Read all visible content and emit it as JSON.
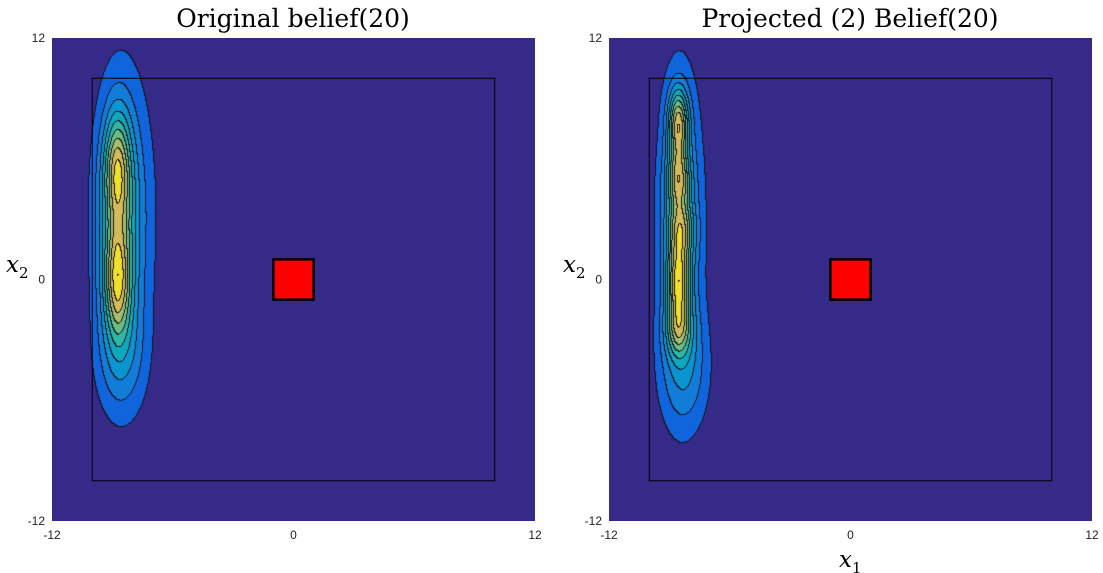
{
  "chart_data": [
    {
      "type": "contour",
      "title": "Original belief(20)",
      "xlabel": "",
      "ylabel": "x2",
      "xlim": [
        -12,
        12
      ],
      "ylim": [
        -12,
        12
      ],
      "x_ticks": [
        "-12",
        "0",
        "12"
      ],
      "y_ticks": [
        "12",
        "0",
        "-12"
      ],
      "background_color": "#352A87",
      "boundary_rect": {
        "x": [
          -10,
          10
        ],
        "y": [
          -10,
          10
        ]
      },
      "obstacle": {
        "x": [
          -1,
          1
        ],
        "y": [
          -1,
          1
        ],
        "color": "#FF0000"
      },
      "belief_blobs": [
        {
          "cx": -8.8,
          "cy": 5.5,
          "sx": 0.45,
          "sy": 1.9,
          "amp": 0.95
        },
        {
          "cx": -8.8,
          "cy": 0.0,
          "sx": 0.45,
          "sy": 1.9,
          "amp": 1.0
        },
        {
          "cx": -8.7,
          "cy": 2.8,
          "sx": 0.8,
          "sy": 4.2,
          "amp": 0.55
        },
        {
          "cx": -8.6,
          "cy": -3.8,
          "sx": 0.9,
          "sy": 2.2,
          "amp": 0.35
        },
        {
          "cx": -8.4,
          "cy": 3.5,
          "sx": 1.2,
          "sy": 5.5,
          "amp": 0.3
        }
      ]
    },
    {
      "type": "contour",
      "title": "Projected (2) Belief(20)",
      "xlabel": "x1",
      "ylabel": "x2",
      "xlim": [
        -12,
        12
      ],
      "ylim": [
        -12,
        12
      ],
      "x_ticks": [
        "-12",
        "0",
        "12"
      ],
      "y_ticks": [
        "12",
        "0",
        "-12"
      ],
      "background_color": "#352A87",
      "boundary_rect": {
        "x": [
          -10,
          10
        ],
        "y": [
          -10,
          10
        ]
      },
      "obstacle": {
        "x": [
          -1,
          1
        ],
        "y": [
          -1,
          1
        ],
        "color": "#FF0000"
      },
      "belief_blobs": [
        {
          "cx": -8.6,
          "cy": 7.8,
          "sx": 0.35,
          "sy": 1.2,
          "amp": 0.9
        },
        {
          "cx": -8.6,
          "cy": 5.0,
          "sx": 0.4,
          "sy": 1.1,
          "amp": 0.75
        },
        {
          "cx": -8.5,
          "cy": 2.5,
          "sx": 0.45,
          "sy": 1.0,
          "amp": 0.65
        },
        {
          "cx": -8.6,
          "cy": 0.0,
          "sx": 0.4,
          "sy": 1.3,
          "amp": 0.9
        },
        {
          "cx": -8.6,
          "cy": -2.4,
          "sx": 0.45,
          "sy": 1.0,
          "amp": 0.6
        },
        {
          "cx": -8.5,
          "cy": 3.0,
          "sx": 0.85,
          "sy": 5.5,
          "amp": 0.4
        },
        {
          "cx": -8.3,
          "cy": -4.5,
          "sx": 0.9,
          "sy": 2.2,
          "amp": 0.3
        }
      ]
    }
  ]
}
